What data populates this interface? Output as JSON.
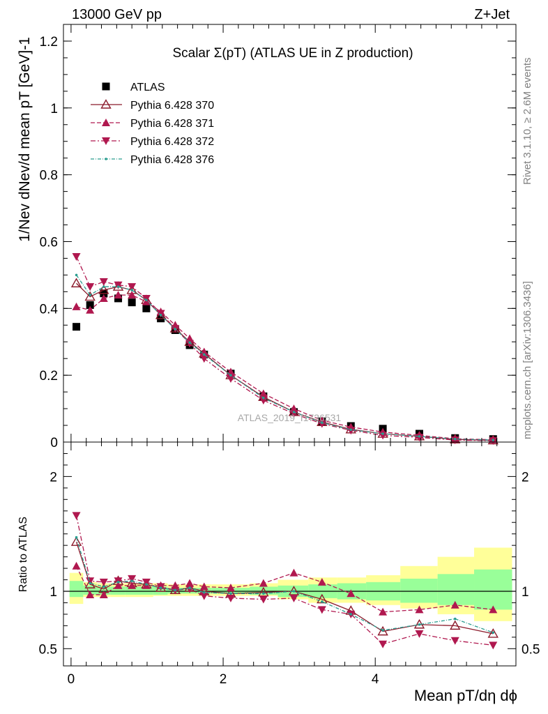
{
  "header": {
    "energy": "13000 GeV pp",
    "process": "Z+Jet"
  },
  "side_labels": {
    "rivet": "Rivet 3.1.10, ≥ 2.6M events",
    "source": "mcplots.cern.ch [arXiv:1306.3436]"
  },
  "chart_data": [
    {
      "type": "line",
      "panel": "main",
      "title": "Scalar Σ(pT) (ATLAS UE in Z production)",
      "watermark": "ATLAS_2019_I1736531",
      "ylabel": "1/Nev dNev/d mean pT [GeV]-1",
      "xlim": [
        -0.1,
        5.85
      ],
      "ylim": [
        0,
        1.25
      ],
      "yticks": [
        "0",
        "0.2",
        "0.4",
        "0.6",
        "0.8",
        "1",
        "1.2"
      ],
      "x": [
        0.07,
        0.25,
        0.43,
        0.62,
        0.8,
        0.99,
        1.18,
        1.37,
        1.56,
        1.75,
        2.1,
        2.53,
        2.93,
        3.3,
        3.68,
        4.1,
        4.58,
        5.05,
        5.55
      ],
      "series": [
        {
          "name": "ATLAS",
          "color": "#000000",
          "marker": "square",
          "values": [
            0.345,
            0.41,
            0.445,
            0.43,
            0.418,
            0.4,
            0.37,
            0.335,
            0.29,
            0.262,
            0.205,
            0.137,
            0.09,
            0.062,
            0.048,
            0.04,
            0.025,
            0.012,
            0.009
          ]
        },
        {
          "name": "Pythia 6.428 370",
          "color": "#8b1a2b",
          "marker": "triangle-open",
          "dash": "",
          "values": [
            0.475,
            0.435,
            0.455,
            0.465,
            0.455,
            0.425,
            0.38,
            0.34,
            0.3,
            0.265,
            0.2,
            0.135,
            0.09,
            0.06,
            0.038,
            0.025,
            0.017,
            0.008,
            0.005
          ]
        },
        {
          "name": "Pythia 6.428 371",
          "color": "#b0184f",
          "marker": "triangle-up",
          "dash": "6,3",
          "values": [
            0.405,
            0.395,
            0.43,
            0.44,
            0.44,
            0.42,
            0.39,
            0.35,
            0.31,
            0.27,
            0.21,
            0.145,
            0.1,
            0.065,
            0.045,
            0.03,
            0.02,
            0.01,
            0.007
          ]
        },
        {
          "name": "Pythia 6.428 372",
          "color": "#b0184f",
          "marker": "triangle-down",
          "dash": "7,3,2,3",
          "values": [
            0.555,
            0.465,
            0.48,
            0.47,
            0.465,
            0.43,
            0.385,
            0.34,
            0.295,
            0.25,
            0.19,
            0.125,
            0.085,
            0.055,
            0.035,
            0.02,
            0.014,
            0.006,
            0.004
          ]
        },
        {
          "name": "Pythia 6.428 376",
          "color": "#2a9d8f",
          "marker": "dot",
          "dash": "5,2,1,2",
          "values": [
            0.5,
            0.44,
            0.465,
            0.465,
            0.455,
            0.425,
            0.38,
            0.338,
            0.298,
            0.262,
            0.2,
            0.132,
            0.09,
            0.058,
            0.037,
            0.025,
            0.017,
            0.009,
            0.006
          ]
        }
      ]
    },
    {
      "type": "line",
      "panel": "ratio",
      "ylabel": "Ratio to ATLAS",
      "xlabel": "Mean pT/dη dϕ",
      "xlim": [
        -0.1,
        5.85
      ],
      "ylim": [
        0.35,
        2.3
      ],
      "xticks": [
        "0",
        "2",
        "4"
      ],
      "yticks": [
        "0.5",
        "1",
        "2"
      ],
      "edges": [
        -0.02,
        0.16,
        0.34,
        0.52,
        0.71,
        0.89,
        1.08,
        1.27,
        1.46,
        1.65,
        1.85,
        2.35,
        2.72,
        3.12,
        3.5,
        3.88,
        4.33,
        4.82,
        5.3,
        5.8
      ],
      "band_yellow": [
        [
          0.89,
          1.16
        ],
        [
          0.95,
          1.08
        ],
        [
          0.95,
          1.07
        ],
        [
          0.95,
          1.07
        ],
        [
          0.95,
          1.07
        ],
        [
          0.95,
          1.07
        ],
        [
          0.96,
          1.07
        ],
        [
          0.96,
          1.06
        ],
        [
          0.96,
          1.06
        ],
        [
          0.96,
          1.06
        ],
        [
          0.96,
          1.06
        ],
        [
          0.96,
          1.07
        ],
        [
          0.93,
          1.1
        ],
        [
          0.9,
          1.12
        ],
        [
          0.9,
          1.12
        ],
        [
          0.88,
          1.14
        ],
        [
          0.85,
          1.22
        ],
        [
          0.8,
          1.3
        ],
        [
          0.74,
          1.38
        ]
      ],
      "band_green": [
        [
          0.95,
          1.09
        ],
        [
          0.97,
          1.05
        ],
        [
          0.97,
          1.04
        ],
        [
          0.97,
          1.04
        ],
        [
          0.97,
          1.04
        ],
        [
          0.97,
          1.04
        ],
        [
          0.97,
          1.04
        ],
        [
          0.98,
          1.03
        ],
        [
          0.98,
          1.03
        ],
        [
          0.98,
          1.03
        ],
        [
          0.98,
          1.03
        ],
        [
          0.97,
          1.04
        ],
        [
          0.95,
          1.05
        ],
        [
          0.94,
          1.06
        ],
        [
          0.93,
          1.07
        ],
        [
          0.92,
          1.08
        ],
        [
          0.9,
          1.11
        ],
        [
          0.88,
          1.15
        ],
        [
          0.84,
          1.19
        ]
      ],
      "series": [
        {
          "name": "Pythia 6.428 370",
          "values": [
            1.43,
            1.06,
            1.02,
            1.09,
            1.07,
            1.06,
            1.03,
            1.01,
            1.03,
            1.0,
            0.98,
            0.99,
            1.0,
            0.93,
            0.83,
            0.65,
            0.71,
            0.7,
            0.63
          ]
        },
        {
          "name": "Pythia 6.428 371",
          "values": [
            1.22,
            0.97,
            0.97,
            1.05,
            1.05,
            1.05,
            1.05,
            1.05,
            1.07,
            1.04,
            1.03,
            1.07,
            1.16,
            1.08,
            0.98,
            0.82,
            0.84,
            0.88,
            0.84
          ]
        },
        {
          "name": "Pythia 6.428 372",
          "values": [
            1.66,
            1.09,
            1.08,
            1.09,
            1.11,
            1.08,
            1.04,
            1.01,
            1.02,
            0.96,
            0.94,
            0.93,
            0.94,
            0.84,
            0.8,
            0.54,
            0.63,
            0.57,
            0.53
          ]
        },
        {
          "name": "Pythia 6.428 376",
          "values": [
            1.47,
            1.07,
            1.04,
            1.08,
            1.09,
            1.06,
            1.03,
            1.01,
            1.03,
            0.99,
            0.98,
            0.98,
            1.0,
            0.91,
            0.8,
            0.66,
            0.71,
            0.76,
            0.64
          ]
        }
      ]
    }
  ]
}
